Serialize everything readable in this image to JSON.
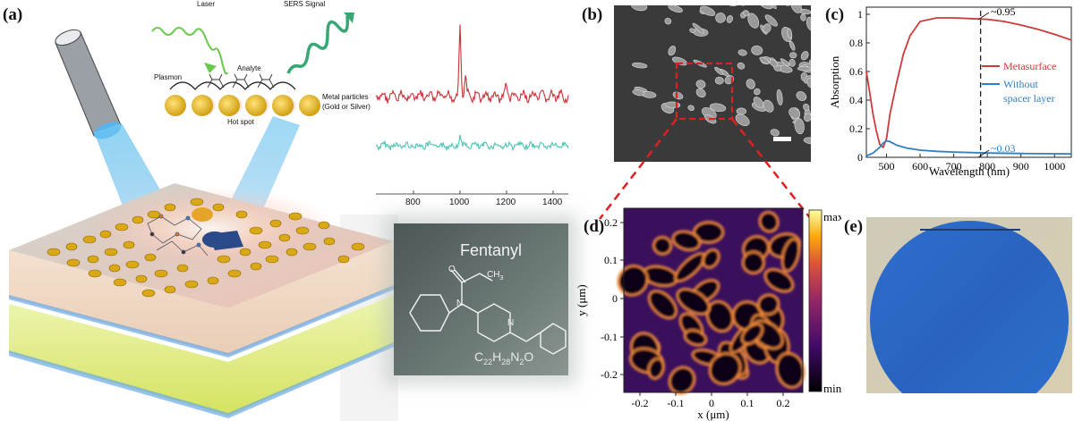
{
  "panels": {
    "a": {
      "letter": "(a)",
      "schematic": {
        "laser_label": "Laser",
        "sers_label": "SERS Signal",
        "analyte_label": "Analyte",
        "plasmon_label": "Plasmon",
        "metal_label_line1": "Metal particles",
        "metal_label_line2": "(Gold or Silver)",
        "hotspot_label": "Hot spot"
      },
      "spectrum": {
        "x_ticks": [
          "800",
          "1000",
          "1200",
          "1400"
        ]
      },
      "molecule": {
        "name": "Fentanyl",
        "methyl_label": "CH",
        "methyl_sub": "3",
        "n1_label": "N",
        "n2_label": "N",
        "o_label": "O",
        "formula_C": "C",
        "formula_C_sub": "22",
        "formula_H": "H",
        "formula_H_sub": "28",
        "formula_N": "N",
        "formula_N_sub": "2",
        "formula_O": "O"
      }
    },
    "b": {
      "letter": "(b)"
    },
    "c": {
      "letter": "(c)"
    },
    "d": {
      "letter": "(d)"
    },
    "e": {
      "letter": "(e)"
    }
  },
  "colors": {
    "metasurface": "#cc3b3b",
    "without_spacer": "#2f7fc1",
    "spectrum_red": "#c8323a",
    "spectrum_teal": "#4cc3b3",
    "gold": "#e5b51b",
    "wafer_blue": "#2a6ccf"
  },
  "chart_data": [
    {
      "id": "c",
      "type": "line",
      "xlabel": "Wavelength (nm)",
      "ylabel": "Absorption",
      "xlim": [
        440,
        1050
      ],
      "ylim": [
        0,
        1.05
      ],
      "x_ticks": [
        500,
        600,
        700,
        800,
        900,
        1000
      ],
      "y_ticks": [
        0,
        0.2,
        0.4,
        0.6,
        0.8,
        1
      ],
      "legend": [
        "Metasurface",
        "Without spacer layer"
      ],
      "legend_lines": [
        "Metasurface",
        "Without",
        "spacer layer"
      ],
      "annotations": [
        "~0.95",
        "~0.03"
      ],
      "dashed_x": 780,
      "series": [
        {
          "name": "Metasurface",
          "x": [
            440,
            450,
            460,
            470,
            480,
            490,
            500,
            510,
            530,
            550,
            570,
            600,
            650,
            700,
            750,
            800,
            850,
            900,
            950,
            1000,
            1050
          ],
          "y": [
            0.6,
            0.45,
            0.3,
            0.18,
            0.09,
            0.07,
            0.13,
            0.3,
            0.52,
            0.72,
            0.85,
            0.95,
            0.975,
            0.975,
            0.97,
            0.965,
            0.95,
            0.925,
            0.895,
            0.86,
            0.82
          ]
        },
        {
          "name": "Without spacer layer",
          "x": [
            440,
            460,
            480,
            490,
            500,
            510,
            530,
            560,
            600,
            650,
            700,
            800,
            900,
            1000,
            1050
          ],
          "y": [
            0.01,
            0.03,
            0.07,
            0.1,
            0.115,
            0.11,
            0.085,
            0.065,
            0.05,
            0.042,
            0.037,
            0.03,
            0.027,
            0.025,
            0.024
          ]
        }
      ]
    },
    {
      "id": "d",
      "type": "heatmap",
      "xlabel": "x (μm)",
      "ylabel": "y (μm)",
      "x_ticks": [
        "-0.2",
        "-0.1",
        "0",
        "0.1",
        "0.2"
      ],
      "y_ticks": [
        "0.2",
        "0.1",
        "0",
        "-0.1",
        "-0.2"
      ],
      "colorbar_max": "max",
      "colorbar_min": "min"
    }
  ]
}
